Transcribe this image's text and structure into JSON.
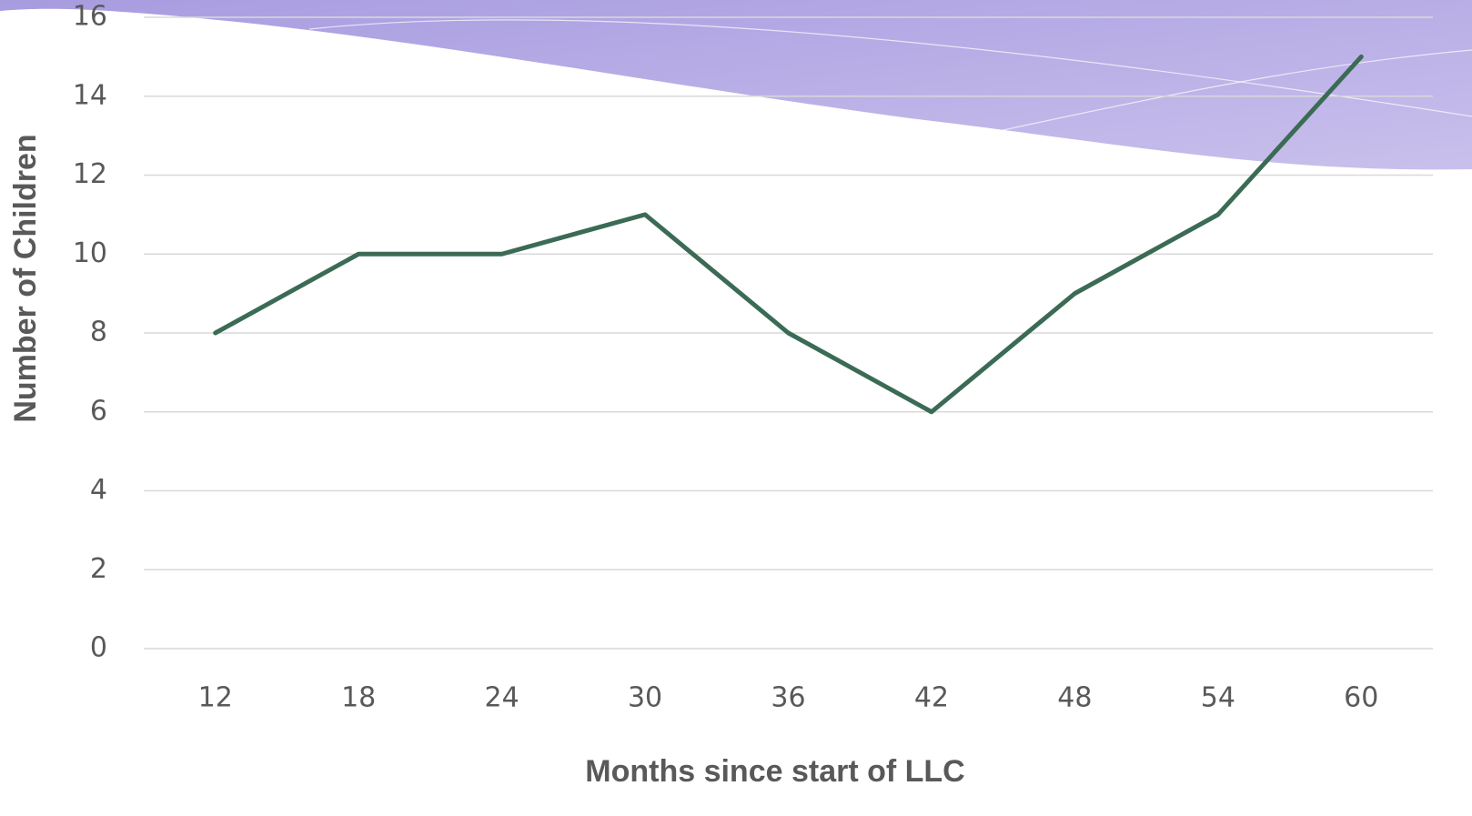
{
  "chart_data": {
    "type": "line",
    "x_label": "Months since start of LLC",
    "y_label": "Number of Children",
    "categories": [
      "12",
      "18",
      "24",
      "30",
      "36",
      "42",
      "48",
      "54",
      "60"
    ],
    "values": [
      8,
      10,
      10,
      11,
      8,
      6,
      9,
      11,
      15
    ],
    "color": "#3b6b55",
    "ylim": [
      0,
      16
    ],
    "yticks": [
      0,
      2,
      4,
      6,
      8,
      10,
      12,
      14,
      16
    ],
    "grid": true
  }
}
